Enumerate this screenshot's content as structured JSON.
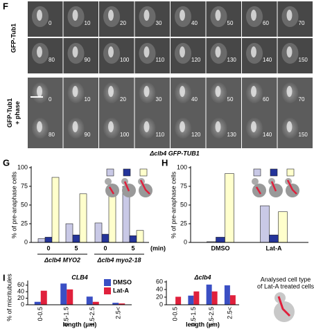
{
  "figure": {
    "panel_labels": [
      "F",
      "G",
      "H",
      "I"
    ],
    "channels": [
      [
        "GFP-Tub1"
      ],
      [
        "GFP-Tub1",
        "+ phase"
      ]
    ],
    "times": [
      0,
      10,
      20,
      30,
      40,
      50,
      60,
      70,
      80,
      90,
      100,
      110,
      120,
      130,
      140,
      150
    ],
    "caption": "Δclb4 GFP-TUB1",
    "cell_type_note": [
      "Analysed cell type",
      "of Lat-A treated cells"
    ]
  },
  "chart_data": [
    {
      "type": "bar",
      "ylabel": "% of pre-anaphase cells",
      "categories": [
        "0",
        "5",
        "0",
        "5"
      ],
      "x_unit": "(min)",
      "group_labels": [
        "Δclb4 MYO2",
        "Δclb4 myo2-18"
      ],
      "series": [
        {
          "color": "#c9c9e6",
          "values": [
            5,
            25,
            26,
            75
          ]
        },
        {
          "color": "#24349a",
          "values": [
            7,
            10,
            11,
            9
          ]
        },
        {
          "color": "#ffffcc",
          "values": [
            87,
            65,
            64,
            16
          ]
        }
      ],
      "ylim": [
        0,
        100
      ],
      "yticks": [
        0,
        25,
        50,
        75,
        100
      ]
    },
    {
      "type": "bar",
      "ylabel": "% of pre-anaphase cells",
      "categories": [
        "DMSO",
        "Lat-A"
      ],
      "series": [
        {
          "color": "#c9c9e6",
          "values": [
            1,
            49
          ]
        },
        {
          "color": "#24349a",
          "values": [
            7,
            10
          ]
        },
        {
          "color": "#ffffcc",
          "values": [
            92,
            41
          ]
        }
      ],
      "ylim": [
        0,
        100
      ],
      "yticks": [
        0,
        25,
        50,
        75,
        100
      ]
    },
    {
      "type": "bar",
      "title": "CLB4",
      "ylabel": "% of micritubules",
      "xlabel": "length (µm)",
      "categories": [
        "0-0.5",
        "0.5-1.5",
        "1.5-2.5",
        "2.5<"
      ],
      "series": [
        {
          "name": "DMSO",
          "color": "#3a4fc4",
          "values": [
            9,
            65,
            25,
            6
          ]
        },
        {
          "name": "Lat-A",
          "color": "#e0203c",
          "values": [
            43,
            47,
            9,
            4
          ]
        }
      ],
      "ylim": [
        0,
        70
      ],
      "yticks": [
        0,
        20,
        40,
        60
      ],
      "legend": "top right"
    },
    {
      "type": "bar",
      "title": "Δclb4",
      "xlabel": "length (µm)",
      "categories": [
        "0-0.5",
        "0.5-1.5",
        "1.5-2.5",
        "2.5<"
      ],
      "series": [
        {
          "name": "DMSO",
          "color": "#3a4fc4",
          "values": [
            0,
            24,
            53,
            51
          ]
        },
        {
          "name": "Lat-A",
          "color": "#e0203c",
          "values": [
            21,
            35,
            35,
            25
          ]
        }
      ],
      "ylim": [
        0,
        60
      ],
      "yticks": [
        0,
        20,
        40,
        60
      ]
    }
  ]
}
